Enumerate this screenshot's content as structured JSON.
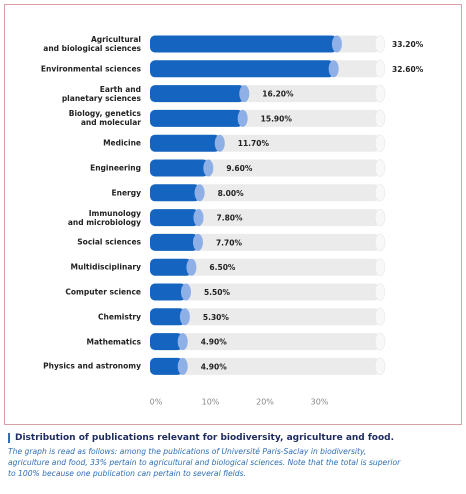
{
  "chart_data": {
    "type": "bar",
    "orientation": "horizontal",
    "categories": [
      "Agricultural\nand biological sciences",
      "Environmental sciences",
      "Earth and\nplanetary sciences",
      "Biology, genetics\nand molecular",
      "Medicine",
      "Engineering",
      "Energy",
      "Immunology\nand microbiology",
      "Social sciences",
      "Multidisciplinary",
      "Computer science",
      "Chemistry",
      "Mathematics",
      "Physics and astronomy"
    ],
    "values": [
      33.2,
      32.6,
      16.2,
      15.9,
      11.7,
      9.6,
      8.0,
      7.8,
      7.7,
      6.5,
      5.5,
      5.3,
      4.9,
      4.9
    ],
    "value_labels": [
      "33.20%",
      "32.60%",
      "16.20%",
      "15.90%",
      "11.70%",
      "9.60%",
      "8.00%",
      "7.80%",
      "7.70%",
      "6.50%",
      "5.50%",
      "5.30%",
      "4.90%",
      "4.90%"
    ],
    "color": "#1565c0",
    "xlim": [
      0,
      40
    ],
    "xticks": [
      {
        "value": 0,
        "label": "0%"
      },
      {
        "value": 10,
        "label": "10%"
      },
      {
        "value": 20,
        "label": "20%"
      },
      {
        "value": 30,
        "label": "30%"
      }
    ],
    "grid": false,
    "caption_title": "Distribution of publications relevant for biodiversity, agriculture and food.",
    "caption_lines": [
      "The graph is read as follows: among the publications of Université Paris-Saclay in biodiversity,",
      "agriculture and food, 33% pertain to agricultural and biological sciences. Note that the total is superior",
      "to 100% because one publication can pertain to several fields."
    ]
  }
}
